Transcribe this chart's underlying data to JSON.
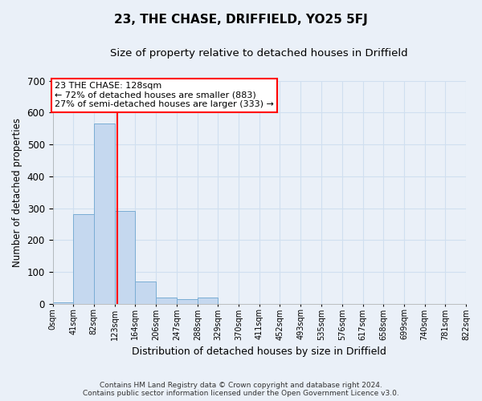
{
  "title": "23, THE CHASE, DRIFFIELD, YO25 5FJ",
  "subtitle": "Size of property relative to detached houses in Driffield",
  "xlabel": "Distribution of detached houses by size in Driffield",
  "ylabel": "Number of detached properties",
  "bins": [
    0,
    41,
    82,
    123,
    164,
    206,
    247,
    288,
    329,
    370,
    411,
    452,
    493,
    535,
    576,
    617,
    658,
    699,
    740,
    781,
    822
  ],
  "counts": [
    5,
    280,
    565,
    290,
    70,
    20,
    15,
    20,
    0,
    0,
    0,
    0,
    0,
    0,
    0,
    0,
    0,
    0,
    0,
    0
  ],
  "bar_color": "#c5d8ef",
  "bar_edge_color": "#7aadd4",
  "grid_color": "#d0dff0",
  "property_size": 128,
  "property_label": "23 THE CHASE: 128sqm",
  "annotation_line1": "← 72% of detached houses are smaller (883)",
  "annotation_line2": "27% of semi-detached houses are larger (333) →",
  "annotation_box_color": "white",
  "annotation_box_edge": "red",
  "vline_color": "red",
  "ylim": [
    0,
    700
  ],
  "yticks": [
    0,
    100,
    200,
    300,
    400,
    500,
    600,
    700
  ],
  "footer_line1": "Contains HM Land Registry data © Crown copyright and database right 2024.",
  "footer_line2": "Contains public sector information licensed under the Open Government Licence v3.0.",
  "bg_color": "#eaf0f8",
  "title_fontsize": 11,
  "subtitle_fontsize": 9.5,
  "ylabel_fontsize": 8.5,
  "xlabel_fontsize": 9,
  "ytick_fontsize": 8.5,
  "xtick_fontsize": 7
}
